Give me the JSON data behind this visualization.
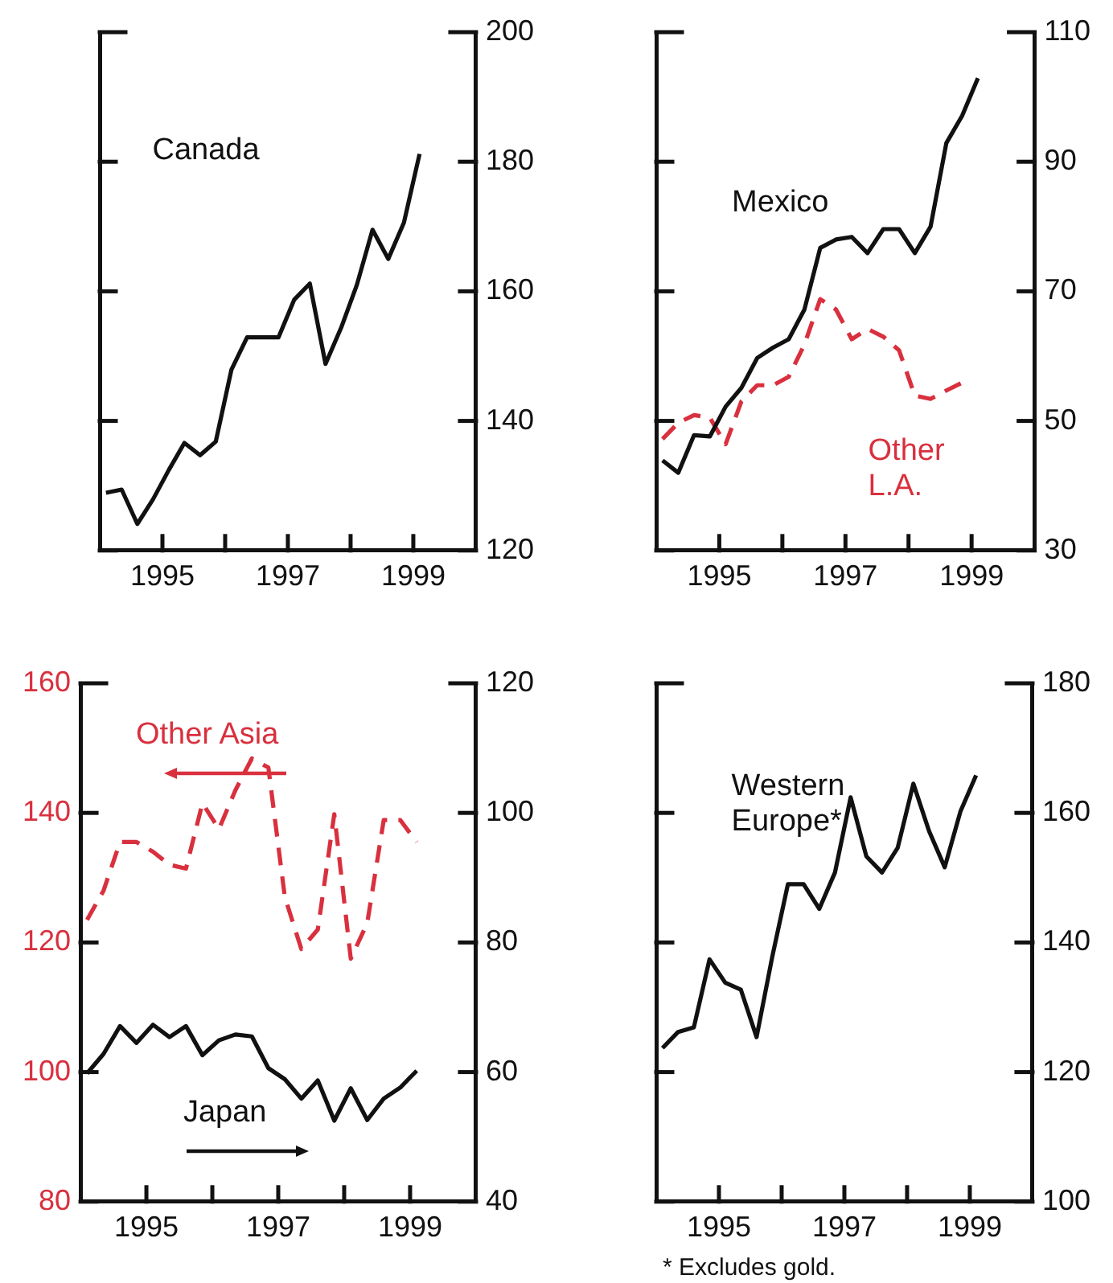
{
  "chart_data": [
    {
      "type": "line",
      "x": [
        1994.1,
        1994.35,
        1994.6,
        1994.85,
        1995.1,
        1995.35,
        1995.6,
        1995.85,
        1996.1,
        1996.35,
        1996.6,
        1996.85,
        1997.1,
        1997.35,
        1997.6,
        1997.85,
        1998.1,
        1998.35,
        1998.6,
        1998.85,
        1999.1
      ],
      "series": [
        {
          "name": "Canada",
          "color": "#111111",
          "axis": "y2",
          "values": [
            128.9,
            129.4,
            124.1,
            127.9,
            132.4,
            136.6,
            134.7,
            136.8,
            147.9,
            152.9,
            152.9,
            152.9,
            158.7,
            161.2,
            148.8,
            154.4,
            161,
            169.5,
            165,
            170.6,
            181.2
          ]
        }
      ],
      "xlim": [
        1994,
        2000
      ],
      "xticks": [
        {
          "value": 1995,
          "label": "1995"
        },
        {
          "value": 1996,
          "label": null
        },
        {
          "value": 1997,
          "label": "1997"
        },
        {
          "value": 1998,
          "label": null
        },
        {
          "value": 1999,
          "label": "1999"
        }
      ],
      "y2lim": [
        120,
        200
      ],
      "y2ticks": [
        120,
        140,
        160,
        180,
        200
      ],
      "line_style": "solid"
    },
    {
      "type": "line",
      "x": [
        1994.1,
        1994.35,
        1994.6,
        1994.85,
        1995.1,
        1995.35,
        1995.6,
        1995.85,
        1996.1,
        1996.35,
        1996.6,
        1996.85,
        1997.1,
        1997.35,
        1997.6,
        1997.85,
        1998.1,
        1998.35,
        1998.6,
        1998.85,
        1999.1
      ],
      "series": [
        {
          "name": "Mexico",
          "color": "#111111",
          "axis": "y2",
          "line_style": "solid",
          "values": [
            43.9,
            42,
            47.8,
            47.6,
            52.2,
            55.1,
            59.7,
            61.3,
            62.6,
            67.2,
            76.7,
            78,
            78.4,
            75.9,
            79.6,
            79.6,
            75.9,
            80,
            92.9,
            97.1,
            102.9
          ]
        },
        {
          "name": "Other L.A.",
          "color": "#d9303e",
          "axis": "y2",
          "line_style": "dashed",
          "values": [
            47.2,
            49.7,
            50.9,
            50.5,
            46.4,
            53,
            55.5,
            55.5,
            56.8,
            61.8,
            68.8,
            67.2,
            62.6,
            64.2,
            63,
            60.9,
            53.9,
            53.4,
            54.7,
            55.9,
            null
          ]
        }
      ],
      "xlim": [
        1994,
        2000
      ],
      "xticks": [
        {
          "value": 1995,
          "label": "1995"
        },
        {
          "value": 1996,
          "label": null
        },
        {
          "value": 1997,
          "label": "1997"
        },
        {
          "value": 1998,
          "label": null
        },
        {
          "value": 1999,
          "label": "1999"
        }
      ],
      "y2lim": [
        30,
        110
      ],
      "y2ticks": [
        30,
        50,
        70,
        90,
        110
      ]
    },
    {
      "type": "line",
      "x": [
        1994.1,
        1994.35,
        1994.6,
        1994.85,
        1995.1,
        1995.35,
        1995.6,
        1995.85,
        1996.1,
        1996.35,
        1996.6,
        1996.85,
        1997.1,
        1997.35,
        1997.6,
        1997.85,
        1998.1,
        1998.35,
        1998.6,
        1998.85,
        1999.1
      ],
      "series": [
        {
          "name": "Other Asia",
          "color": "#d9303e",
          "axis": "y",
          "line_style": "dashed",
          "values": [
            123.5,
            128,
            135.5,
            135.5,
            134,
            132,
            131.4,
            141.5,
            137.5,
            143.5,
            148.4,
            147,
            127,
            119,
            122,
            139.8,
            117.5,
            123,
            138.9,
            138.9,
            135.5
          ]
        },
        {
          "name": "Japan",
          "color": "#111111",
          "axis": "y2",
          "line_style": "solid",
          "values": [
            59.8,
            62.8,
            67.1,
            64.5,
            67.3,
            65.4,
            67.1,
            62.6,
            64.9,
            65.8,
            65.5,
            60.6,
            58.9,
            55.9,
            58.7,
            52.5,
            57.5,
            52.6,
            55.9,
            57.6,
            60.2
          ]
        }
      ],
      "xlim": [
        1994,
        2000
      ],
      "xticks": [
        {
          "value": 1995,
          "label": "1995"
        },
        {
          "value": 1996,
          "label": null
        },
        {
          "value": 1997,
          "label": "1997"
        },
        {
          "value": 1998,
          "label": null
        },
        {
          "value": 1999,
          "label": "1999"
        }
      ],
      "ylim": [
        80,
        160
      ],
      "yticks": [
        80,
        100,
        120,
        140,
        160
      ],
      "y2lim": [
        40,
        120
      ],
      "y2ticks": [
        40,
        60,
        80,
        100,
        120
      ]
    },
    {
      "type": "line",
      "x": [
        1994.1,
        1994.35,
        1994.6,
        1994.85,
        1995.1,
        1995.35,
        1995.6,
        1995.85,
        1996.1,
        1996.35,
        1996.6,
        1996.85,
        1997.1,
        1997.35,
        1997.6,
        1997.85,
        1998.1,
        1998.35,
        1998.6,
        1998.85,
        1999.1
      ],
      "series": [
        {
          "name": "Western Europe*",
          "color": "#111111",
          "axis": "y2",
          "values": [
            123.7,
            126.2,
            126.9,
            137.4,
            133.8,
            132.7,
            125.4,
            137.8,
            149,
            149,
            145.2,
            150.8,
            162.4,
            153.3,
            150.8,
            154.6,
            164.5,
            157.2,
            151.6,
            160.2,
            165.8
          ]
        }
      ],
      "xlim": [
        1994,
        2000
      ],
      "xticks": [
        {
          "value": 1995,
          "label": "1995"
        },
        {
          "value": 1996,
          "label": null
        },
        {
          "value": 1997,
          "label": "1997"
        },
        {
          "value": 1998,
          "label": null
        },
        {
          "value": 1999,
          "label": "1999"
        }
      ],
      "y2lim": [
        100,
        180
      ],
      "y2ticks": [
        100,
        120,
        140,
        160,
        180
      ],
      "line_style": "solid",
      "annotations": [
        "* Excludes gold."
      ]
    }
  ]
}
